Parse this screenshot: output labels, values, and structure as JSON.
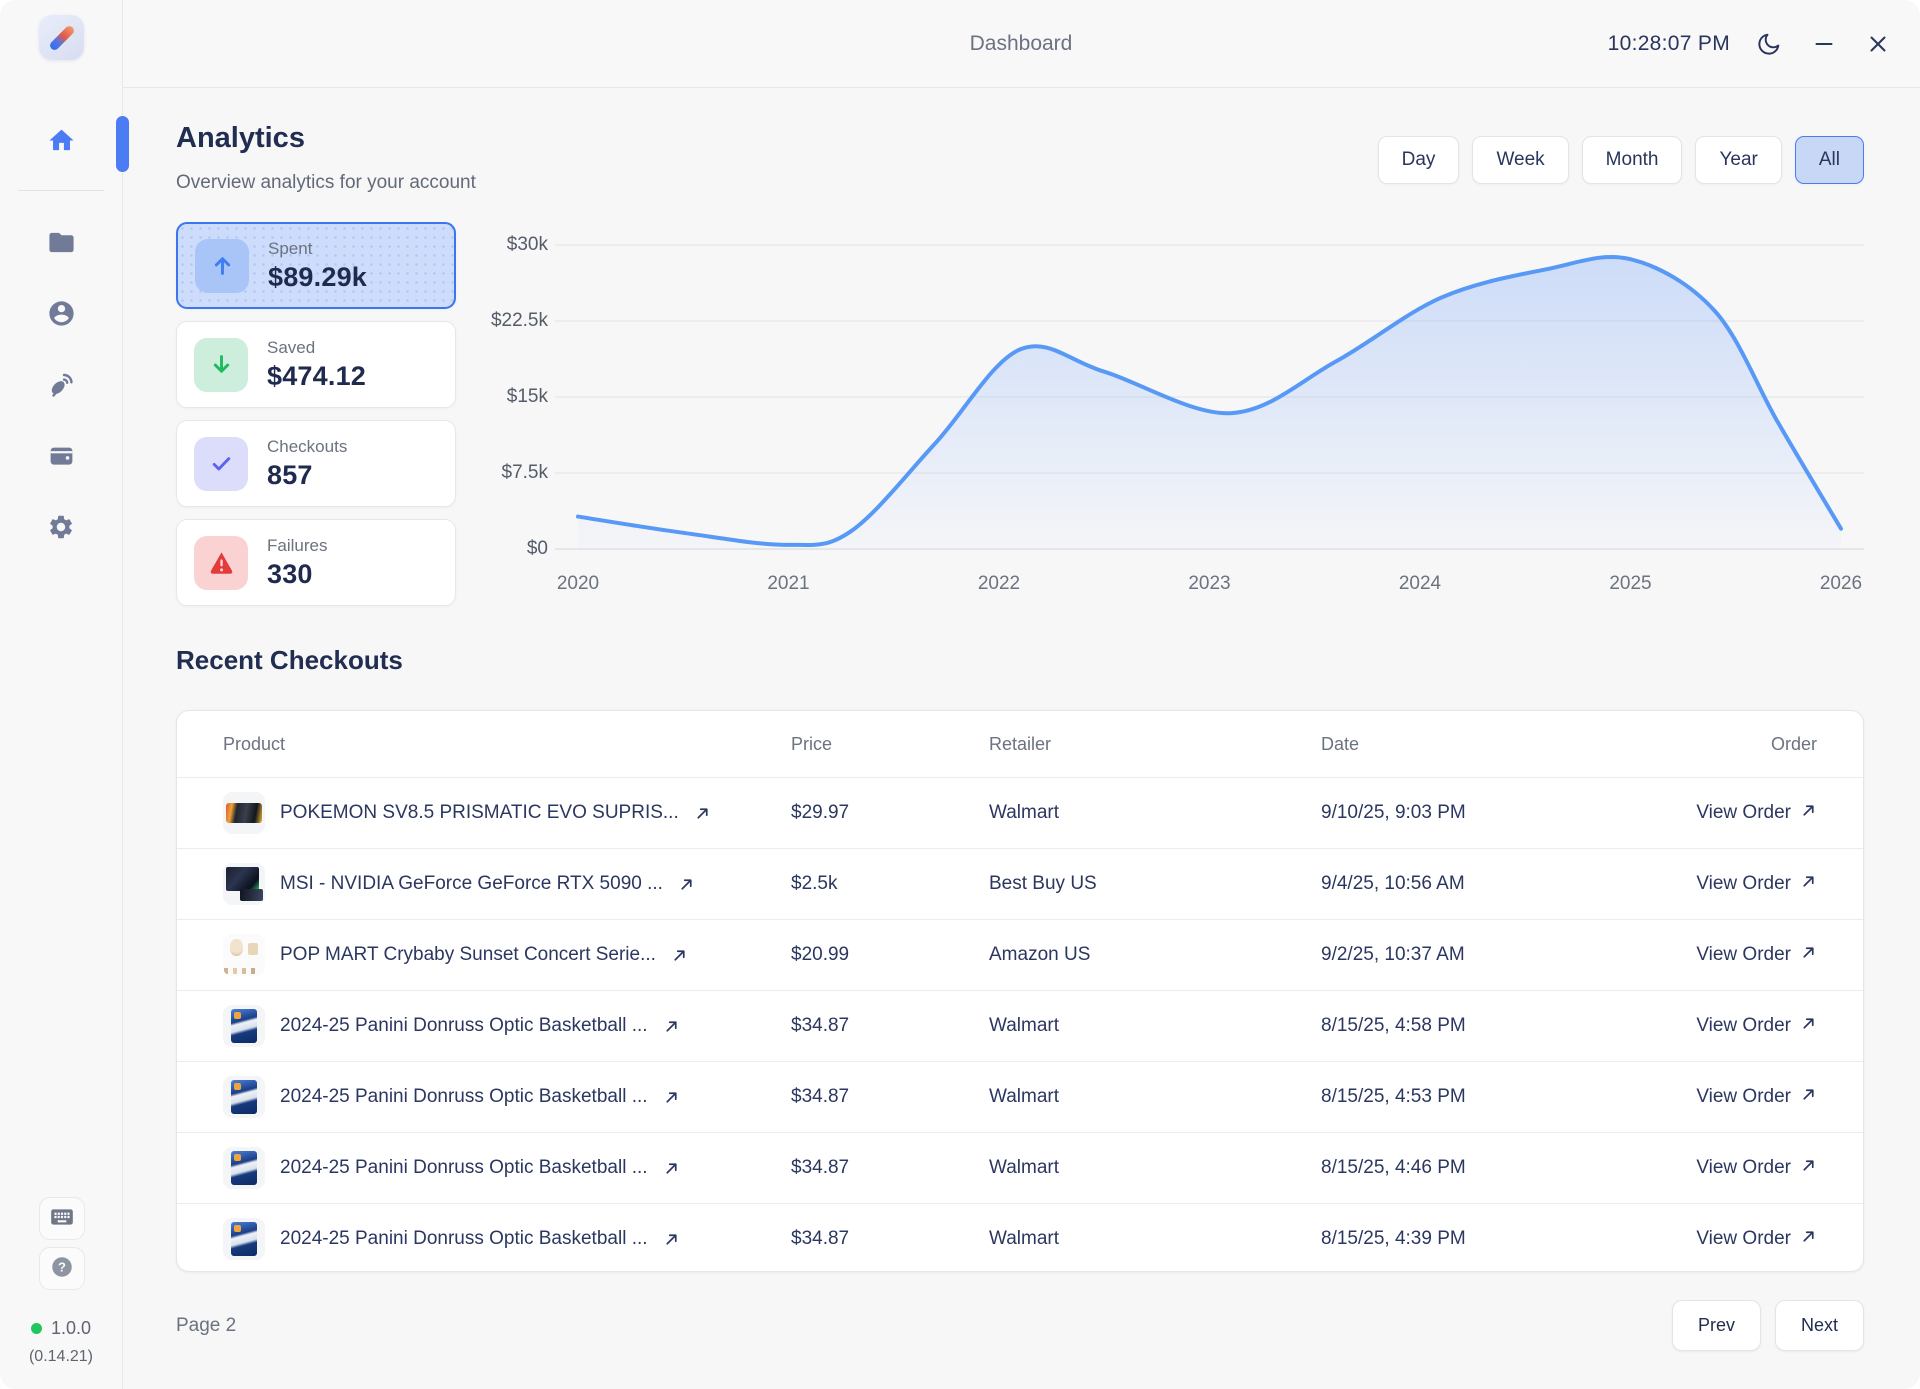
{
  "window": {
    "title": "Dashboard",
    "time": "10:28:07 PM",
    "controls": {
      "theme_icon": "moon-icon",
      "minimize_icon": "minimize-icon",
      "close_icon": "close-icon"
    }
  },
  "sidebar": {
    "items": [
      {
        "id": "home",
        "icon": "home-icon",
        "active": true
      },
      {
        "id": "files",
        "icon": "folder-icon",
        "active": false
      },
      {
        "id": "account",
        "icon": "user-icon",
        "active": false
      },
      {
        "id": "connections",
        "icon": "satellite-icon",
        "active": false
      },
      {
        "id": "wallet",
        "icon": "wallet-icon",
        "active": false
      },
      {
        "id": "settings",
        "icon": "gear-icon",
        "active": false
      }
    ],
    "tools": [
      {
        "id": "keyboard",
        "icon": "keyboard-icon"
      },
      {
        "id": "help",
        "icon": "help-icon"
      }
    ],
    "footer": {
      "version": "1.0.0",
      "build": "(0.14.21)",
      "status_color": "#22c55e"
    }
  },
  "analytics": {
    "title": "Analytics",
    "subtitle": "Overview analytics for your account",
    "filters": [
      "Day",
      "Week",
      "Month",
      "Year",
      "All"
    ],
    "active_filter": "All",
    "stats": [
      {
        "label": "Spent",
        "value": "$89.29k",
        "icon": "arrow-up-icon",
        "accent": "#3f7df2",
        "selected": true
      },
      {
        "label": "Saved",
        "value": "$474.12",
        "icon": "arrow-down-icon",
        "accent": "#1fba5e",
        "selected": false
      },
      {
        "label": "Checkouts",
        "value": "857",
        "icon": "check-icon",
        "accent": "#5b63f0",
        "selected": false
      },
      {
        "label": "Failures",
        "value": "330",
        "icon": "warning-triangle-icon",
        "accent": "#e23b3b",
        "selected": false
      }
    ]
  },
  "chart_data": {
    "type": "area",
    "title": "",
    "xlabel": "",
    "ylabel": "",
    "x": [
      2020,
      2020.5,
      2021,
      2021.3,
      2021.7,
      2022.1,
      2022.5,
      2023.1,
      2023.6,
      2024.1,
      2024.6,
      2025,
      2025.4,
      2025.7,
      2026
    ],
    "values": [
      3.2,
      1.6,
      0.4,
      1.8,
      10.5,
      19.7,
      17.5,
      13.4,
      18.5,
      24.8,
      27.6,
      28.6,
      23.5,
      12.5,
      2.0
    ],
    "unit": "thousands of dollars",
    "y_ticks": [
      "$0",
      "$7.5k",
      "$15k",
      "$22.5k",
      "$30k"
    ],
    "y_tick_values": [
      0,
      7.5,
      15,
      22.5,
      30
    ],
    "x_ticks": [
      "2020",
      "2021",
      "2022",
      "2023",
      "2024",
      "2025",
      "2026"
    ],
    "x_tick_values": [
      2020,
      2021,
      2022,
      2023,
      2024,
      2025,
      2026
    ],
    "ylim": [
      0,
      30
    ],
    "grid": true,
    "legend": false,
    "line_color": "#5899f6",
    "fill_color_top": "rgba(96,150,246,0.28)",
    "fill_color_bottom": "rgba(96,150,246,0.02)"
  },
  "checkouts": {
    "title": "Recent Checkouts",
    "columns": [
      "Product",
      "Price",
      "Retailer",
      "Date",
      "Order"
    ],
    "view_order_label": "View Order",
    "rows": [
      {
        "thumb": "pokemon-box-thumbnail",
        "product": "POKEMON SV8.5 PRISMATIC EVO SUPRIS...",
        "price": "$29.97",
        "retailer": "Walmart",
        "date": "9/10/25, 9:03 PM"
      },
      {
        "thumb": "gpu-box-thumbnail",
        "product": "MSI - NVIDIA GeForce GeForce RTX 5090 ...",
        "price": "$2.5k",
        "retailer": "Best Buy US",
        "date": "9/4/25, 10:56 AM"
      },
      {
        "thumb": "popmart-figures-thumbnail",
        "product": "POP MART Crybaby Sunset Concert Serie...",
        "price": "$20.99",
        "retailer": "Amazon US",
        "date": "9/2/25, 10:37 AM"
      },
      {
        "thumb": "panini-box-thumbnail",
        "product": "2024-25 Panini Donruss Optic Basketball ...",
        "price": "$34.87",
        "retailer": "Walmart",
        "date": "8/15/25, 4:58 PM"
      },
      {
        "thumb": "panini-box-thumbnail",
        "product": "2024-25 Panini Donruss Optic Basketball ...",
        "price": "$34.87",
        "retailer": "Walmart",
        "date": "8/15/25, 4:53 PM"
      },
      {
        "thumb": "panini-box-thumbnail",
        "product": "2024-25 Panini Donruss Optic Basketball ...",
        "price": "$34.87",
        "retailer": "Walmart",
        "date": "8/15/25, 4:46 PM"
      },
      {
        "thumb": "panini-box-thumbnail",
        "product": "2024-25 Panini Donruss Optic Basketball ...",
        "price": "$34.87",
        "retailer": "Walmart",
        "date": "8/15/25, 4:39 PM"
      }
    ],
    "partial_row": {
      "thumb": "panini-box-thumbnail"
    },
    "page_label": "Page 2",
    "prev_label": "Prev",
    "next_label": "Next"
  }
}
